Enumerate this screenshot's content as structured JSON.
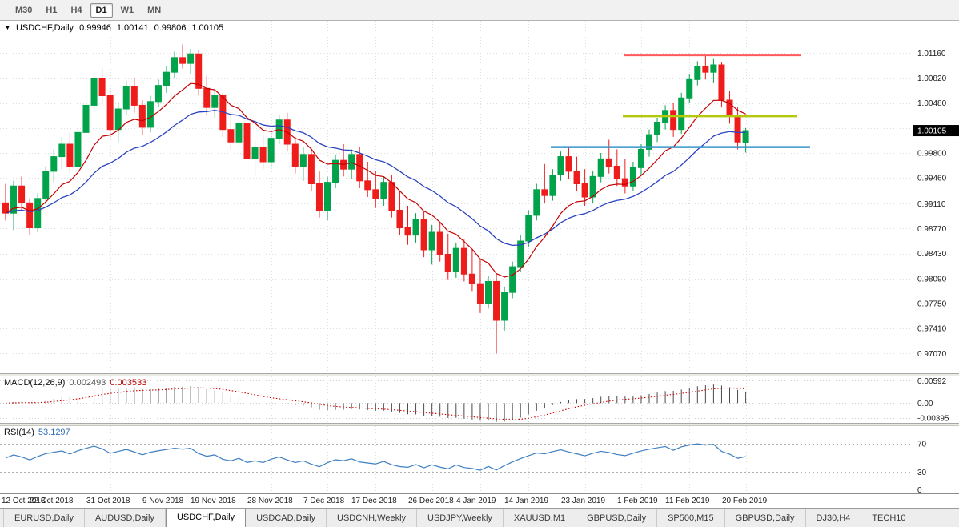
{
  "toolbar": {
    "timeframes": [
      {
        "label": "M30",
        "active": false
      },
      {
        "label": "H1",
        "active": false
      },
      {
        "label": "H4",
        "active": false
      },
      {
        "label": "D1",
        "active": true
      },
      {
        "label": "W1",
        "active": false
      },
      {
        "label": "MN",
        "active": false
      }
    ]
  },
  "quote": {
    "symbol": "USDCHF,Daily",
    "open": "0.99946",
    "high": "1.00141",
    "low": "0.99806",
    "close": "1.00105"
  },
  "indicators": {
    "macd": {
      "label": "MACD(12,26,9)",
      "value_main": "0.002493",
      "value_signal": "0.003533"
    },
    "rsi": {
      "label": "RSI(14)",
      "value": "53.1297"
    }
  },
  "chart_data": {
    "type": "candlestick",
    "title": "USDCHF,Daily",
    "ohlc": [
      [
        0.9912,
        0.9938,
        0.9888,
        0.9898
      ],
      [
        0.9898,
        0.9942,
        0.9875,
        0.9935
      ],
      [
        0.9935,
        0.9948,
        0.9902,
        0.9912
      ],
      [
        0.9912,
        0.9918,
        0.9868,
        0.9878
      ],
      [
        0.9878,
        0.9925,
        0.9872,
        0.9918
      ],
      [
        0.9918,
        0.9962,
        0.991,
        0.9955
      ],
      [
        0.9955,
        0.9985,
        0.994,
        0.9975
      ],
      [
        0.9975,
        1.0002,
        0.9958,
        0.9992
      ],
      [
        0.9992,
        1.0008,
        0.9952,
        0.9962
      ],
      [
        0.9962,
        1.0015,
        0.9955,
        1.0008
      ],
      [
        1.0008,
        1.0052,
        1.0,
        1.0045
      ],
      [
        1.0045,
        1.009,
        1.0038,
        1.0082
      ],
      [
        1.0082,
        1.0095,
        1.0048,
        1.0058
      ],
      [
        1.0058,
        1.0065,
        1.0002,
        1.0012
      ],
      [
        1.0012,
        1.0048,
        0.9995,
        1.004
      ],
      [
        1.004,
        1.0078,
        1.0032,
        1.007
      ],
      [
        1.007,
        1.0082,
        1.0035,
        1.0045
      ],
      [
        1.0045,
        1.0052,
        1.0005,
        1.0015
      ],
      [
        1.0015,
        1.0058,
        1.0008,
        1.005
      ],
      [
        1.005,
        1.008,
        1.0042,
        1.0072
      ],
      [
        1.0072,
        1.0098,
        1.0062,
        1.009
      ],
      [
        1.009,
        1.0118,
        1.0082,
        1.011
      ],
      [
        1.011,
        1.0128,
        1.0095,
        1.0102
      ],
      [
        1.0102,
        1.0122,
        1.0088,
        1.0115
      ],
      [
        1.0115,
        1.012,
        1.0058,
        1.0068
      ],
      [
        1.0068,
        1.0085,
        1.0032,
        1.0042
      ],
      [
        1.0042,
        1.0068,
        1.0028,
        1.0058
      ],
      [
        1.0058,
        1.0062,
        1.0002,
        1.0012
      ],
      [
        1.0012,
        1.0035,
        0.9985,
        0.9995
      ],
      [
        0.9995,
        1.0028,
        0.9988,
        1.002
      ],
      [
        1.002,
        1.0025,
        0.9962,
        0.9972
      ],
      [
        0.9972,
        0.9998,
        0.9948,
        0.9988
      ],
      [
        0.9988,
        1.0005,
        0.9958,
        0.9968
      ],
      [
        0.9968,
        1.0008,
        0.996,
        1.0
      ],
      [
        1.0,
        1.0032,
        0.9992,
        1.0025
      ],
      [
        1.0025,
        1.0035,
        0.9982,
        0.9992
      ],
      [
        0.9992,
        1.0002,
        0.9952,
        0.9962
      ],
      [
        0.9962,
        0.9988,
        0.9942,
        0.9978
      ],
      [
        0.9978,
        0.9985,
        0.9928,
        0.9938
      ],
      [
        0.9938,
        0.9955,
        0.9892,
        0.9902
      ],
      [
        0.9902,
        0.9948,
        0.9888,
        0.994
      ],
      [
        0.994,
        0.9978,
        0.9932,
        0.997
      ],
      [
        0.997,
        0.9992,
        0.9948,
        0.9958
      ],
      [
        0.9958,
        0.9985,
        0.9945,
        0.9978
      ],
      [
        0.9978,
        0.9988,
        0.9932,
        0.9942
      ],
      [
        0.9942,
        0.9968,
        0.992,
        0.993
      ],
      [
        0.993,
        0.9955,
        0.9905,
        0.9918
      ],
      [
        0.9918,
        0.9948,
        0.9908,
        0.994
      ],
      [
        0.994,
        0.995,
        0.9892,
        0.9902
      ],
      [
        0.9902,
        0.9928,
        0.9868,
        0.9878
      ],
      [
        0.9878,
        0.9908,
        0.9855,
        0.9868
      ],
      [
        0.9868,
        0.9898,
        0.9858,
        0.989
      ],
      [
        0.989,
        0.99,
        0.9838,
        0.9848
      ],
      [
        0.9848,
        0.9882,
        0.9828,
        0.9872
      ],
      [
        0.9872,
        0.9885,
        0.9832,
        0.9842
      ],
      [
        0.9842,
        0.987,
        0.9808,
        0.9818
      ],
      [
        0.9818,
        0.9858,
        0.981,
        0.985
      ],
      [
        0.985,
        0.9862,
        0.9805,
        0.9815
      ],
      [
        0.9815,
        0.9848,
        0.9792,
        0.9802
      ],
      [
        0.9802,
        0.9835,
        0.9762,
        0.9775
      ],
      [
        0.9775,
        0.9812,
        0.9768,
        0.9805
      ],
      [
        0.9805,
        0.9815,
        0.9707,
        0.9752
      ],
      [
        0.9752,
        0.9798,
        0.9738,
        0.979
      ],
      [
        0.979,
        0.9832,
        0.9782,
        0.9825
      ],
      [
        0.9825,
        0.9868,
        0.9818,
        0.986
      ],
      [
        0.986,
        0.9902,
        0.9852,
        0.9895
      ],
      [
        0.9895,
        0.9938,
        0.9888,
        0.993
      ],
      [
        0.993,
        0.9965,
        0.9912,
        0.9922
      ],
      [
        0.9922,
        0.9958,
        0.9915,
        0.995
      ],
      [
        0.995,
        0.9982,
        0.9942,
        0.9975
      ],
      [
        0.9975,
        0.9988,
        0.9945,
        0.9955
      ],
      [
        0.9955,
        0.9975,
        0.9928,
        0.9938
      ],
      [
        0.9938,
        0.9958,
        0.9908,
        0.992
      ],
      [
        0.992,
        0.9955,
        0.9912,
        0.9948
      ],
      [
        0.9948,
        0.998,
        0.994,
        0.9972
      ],
      [
        0.9972,
        0.9998,
        0.9952,
        0.9962
      ],
      [
        0.9962,
        0.9985,
        0.9935,
        0.9945
      ],
      [
        0.9945,
        0.9972,
        0.9925,
        0.9935
      ],
      [
        0.9935,
        0.9968,
        0.9928,
        0.996
      ],
      [
        0.996,
        0.9992,
        0.995,
        0.9985
      ],
      [
        0.9985,
        1.0012,
        0.9975,
        1.0005
      ],
      [
        1.0005,
        1.0028,
        0.9995,
        1.0022
      ],
      [
        1.0022,
        1.0045,
        1.0012,
        1.0038
      ],
      [
        1.0038,
        1.0048,
        1.0002,
        1.0012
      ],
      [
        1.0012,
        1.0062,
        1.0006,
        1.0055
      ],
      [
        1.0055,
        1.0088,
        1.0048,
        1.008
      ],
      [
        1.008,
        1.0105,
        1.0072,
        1.0098
      ],
      [
        1.0098,
        1.0112,
        1.008,
        1.009
      ],
      [
        1.009,
        1.0108,
        1.0075,
        1.01
      ],
      [
        1.01,
        1.0104,
        1.0042,
        1.0052
      ],
      [
        1.0052,
        1.0065,
        1.002,
        1.003
      ],
      [
        1.003,
        1.0042,
        0.9985,
        0.9995
      ],
      [
        0.99946,
        1.00141,
        0.99806,
        1.00105
      ]
    ],
    "x_ticks": [
      {
        "label": "12 Oct 2018",
        "i": 0
      },
      {
        "label": "22 Oct 2018",
        "i": 6
      },
      {
        "label": "31 Oct 2018",
        "i": 13
      },
      {
        "label": "9 Nov 2018",
        "i": 20
      },
      {
        "label": "19 Nov 2018",
        "i": 26
      },
      {
        "label": "28 Nov 2018",
        "i": 33
      },
      {
        "label": "7 Dec 2018",
        "i": 40
      },
      {
        "label": "17 Dec 2018",
        "i": 46
      },
      {
        "label": "26 Dec 2018",
        "i": 53
      },
      {
        "label": "4 Jan 2019",
        "i": 59
      },
      {
        "label": "14 Jan 2019",
        "i": 65
      },
      {
        "label": "23 Jan 2019",
        "i": 72
      },
      {
        "label": "1 Feb 2019",
        "i": 79
      },
      {
        "label": "11 Feb 2019",
        "i": 85
      },
      {
        "label": "20 Feb 2019",
        "i": 92
      }
    ],
    "y_axis": {
      "labels": [
        [
          "1.01160",
          1.0116
        ],
        [
          "1.00820",
          1.0082
        ],
        [
          "1.00480",
          1.0048
        ],
        [
          "0.99800",
          0.998
        ],
        [
          "0.99460",
          0.9946
        ],
        [
          "0.99110",
          0.9911
        ],
        [
          "0.98770",
          0.9877
        ],
        [
          "0.98430",
          0.9843
        ],
        [
          "0.98090",
          0.9809
        ],
        [
          "0.97750",
          0.9775
        ],
        [
          "0.97410",
          0.9741
        ],
        [
          "0.97070",
          0.9707
        ]
      ],
      "hidden_gridline": 1.0014,
      "range": [
        0.968,
        1.016
      ]
    },
    "current_price": {
      "label": "1.00105",
      "value": 1.00105
    },
    "overlays": {
      "ma_fast_period": 10,
      "ma_slow_period": 22
    },
    "hlines": [
      {
        "price": 1.0113,
        "x1": 780,
        "x2": 1000,
        "color": "#FF5A5A",
        "width": 2
      },
      {
        "price": 1.003,
        "x1": 778,
        "x2": 996,
        "color": "#B5C90C",
        "width": 2.5
      },
      {
        "price": 0.9988,
        "x1": 688,
        "x2": 1012,
        "color": "#3A96CC",
        "width": 2.5
      }
    ],
    "macd": {
      "fast": 12,
      "slow": 26,
      "signal": 9,
      "axis": [
        [
          "0.00592",
          0.00592
        ],
        [
          "0.00",
          0
        ],
        [
          "-0.00395",
          -0.00395
        ]
      ],
      "range": [
        -0.0052,
        0.007
      ]
    },
    "rsi": {
      "period": 14,
      "levels": [
        70,
        30
      ],
      "axis": [
        [
          "70",
          70
        ],
        [
          "30",
          30
        ],
        [
          "0",
          0
        ]
      ],
      "range": [
        0,
        95
      ]
    },
    "colors": {
      "up": "#00A24A",
      "down": "#EF1C1C",
      "ma_fast": "#C40000",
      "ma_slow": "#2A44C0",
      "grid": "#dedede",
      "axis_line": "#8c8c8c",
      "macd_bar": "#4a4a4a",
      "macd_signal": "#CC0000",
      "rsi_line": "#3E7FC1",
      "level_line": "#b0b0b0",
      "price_tag_bg": "#000000",
      "price_tag_text": "#ffffff"
    }
  },
  "tabs": [
    {
      "label": "EURUSD,Daily",
      "active": false
    },
    {
      "label": "AUDUSD,Daily",
      "active": false
    },
    {
      "label": "USDCHF,Daily",
      "active": true
    },
    {
      "label": "USDCAD,Daily",
      "active": false
    },
    {
      "label": "USDCNH,Weekly",
      "active": false
    },
    {
      "label": "USDJPY,Weekly",
      "active": false
    },
    {
      "label": "XAUUSD,M1",
      "active": false
    },
    {
      "label": "GBPUSD,Daily",
      "active": false
    },
    {
      "label": "SP500,M15",
      "active": false
    },
    {
      "label": "GBPUSD,Daily",
      "active": false
    },
    {
      "label": "DJ30,H4",
      "active": false
    },
    {
      "label": "TECH10",
      "active": false
    }
  ]
}
